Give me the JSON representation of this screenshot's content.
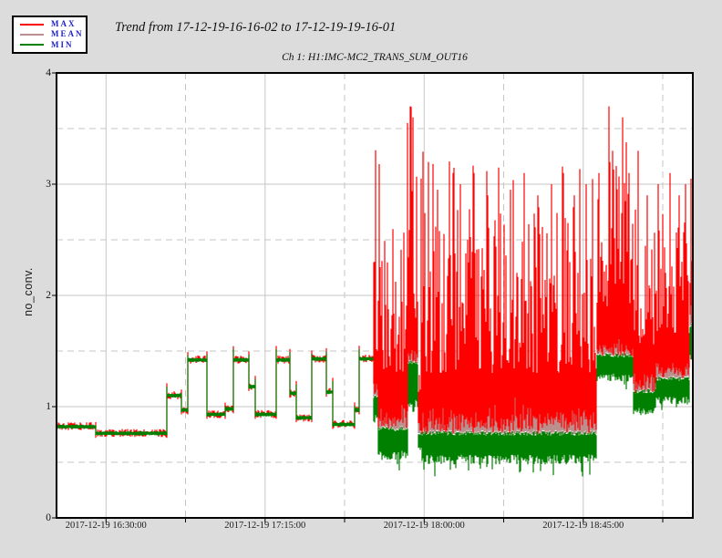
{
  "window": {
    "background": "#dcdcdc",
    "plot_background": "#ffffff",
    "grid_color": "#c6c6c6"
  },
  "chart_data": {
    "type": "line",
    "title": "Trend from 17-12-19-16-16-02 to 17-12-19-19-16-01",
    "subtitle": "Ch 1: H1:IMC-MC2_TRANS_SUM_OUT16",
    "ylabel": "no_conv.",
    "xlabel": "",
    "legend_position": "top-left",
    "grid": true,
    "ylim": [
      0,
      4
    ],
    "y_major_ticks": [
      0,
      1,
      2,
      3,
      4
    ],
    "y_minor_gridlines": [
      0.5,
      1.5,
      2.5,
      3.5
    ],
    "x_minutes_range": [
      0,
      180
    ],
    "x_start_label": "17-12-19-16-16-02",
    "x_end_label": "17-12-19-19-16-01",
    "x_ticks": [
      {
        "t": 14,
        "label": "2017-12-19 16:30:00",
        "major": true
      },
      {
        "t": 36.5,
        "label": "",
        "major": false
      },
      {
        "t": 59,
        "label": "2017-12-19 17:15:00",
        "major": true
      },
      {
        "t": 81.5,
        "label": "",
        "major": false
      },
      {
        "t": 104,
        "label": "2017-12-19 18:00:00",
        "major": true
      },
      {
        "t": 126.5,
        "label": "",
        "major": false
      },
      {
        "t": 149,
        "label": "2017-12-19 18:45:00",
        "major": true
      },
      {
        "t": 171.5,
        "label": "",
        "major": false
      }
    ],
    "series": [
      {
        "name": "MAX",
        "color": "#ff0000"
      },
      {
        "name": "MEAN",
        "color": "#bc8f8f"
      },
      {
        "name": "MIN",
        "color": "#008000"
      }
    ],
    "quiet_steps": [
      {
        "t0": 0,
        "t1": 11,
        "v": 0.82
      },
      {
        "t0": 11,
        "t1": 31.2,
        "v": 0.76
      },
      {
        "t0": 31.2,
        "t1": 35.1,
        "v": 1.1
      },
      {
        "t0": 35.1,
        "t1": 36.9,
        "v": 0.97
      },
      {
        "t0": 36.9,
        "t1": 42.3,
        "v": 1.42
      },
      {
        "t0": 42.3,
        "t1": 47.7,
        "v": 0.93
      },
      {
        "t0": 47.7,
        "t1": 50.0,
        "v": 0.98
      },
      {
        "t0": 50.0,
        "t1": 54.2,
        "v": 1.42
      },
      {
        "t0": 54.2,
        "t1": 56.2,
        "v": 1.18
      },
      {
        "t0": 56.2,
        "t1": 61.9,
        "v": 0.93
      },
      {
        "t0": 61.9,
        "t1": 66.0,
        "v": 1.42
      },
      {
        "t0": 66.0,
        "t1": 67.8,
        "v": 1.12
      },
      {
        "t0": 67.8,
        "t1": 72.0,
        "v": 0.9
      },
      {
        "t0": 72.0,
        "t1": 76.3,
        "v": 1.43
      },
      {
        "t0": 76.3,
        "t1": 77.9,
        "v": 1.13
      },
      {
        "t0": 77.9,
        "t1": 84.3,
        "v": 0.84
      },
      {
        "t0": 84.3,
        "t1": 85.6,
        "v": 0.97
      },
      {
        "t0": 85.6,
        "t1": 89.5,
        "v": 1.43
      }
    ],
    "noise_segments": [
      {
        "t0": 89.5,
        "t1": 91.0,
        "min": [
          0.85,
          1.1
        ],
        "mean": [
          1.05,
          1.3
        ],
        "max": [
          1.5,
          3.4
        ]
      },
      {
        "t0": 91.0,
        "t1": 99.3,
        "min": [
          0.52,
          0.82
        ],
        "mean": [
          0.82,
          1.1
        ],
        "max": [
          1.3,
          3.2
        ]
      },
      {
        "t0": 99.3,
        "t1": 102.2,
        "min": [
          0.95,
          1.42
        ],
        "mean": [
          1.42,
          1.58
        ],
        "max": [
          1.8,
          3.7
        ]
      },
      {
        "t0": 102.2,
        "t1": 103.3,
        "min": [
          0.6,
          0.78
        ],
        "mean": [
          0.78,
          0.9
        ],
        "max": [
          0.95,
          1.8
        ]
      },
      {
        "t0": 103.3,
        "t1": 152.8,
        "min": [
          0.48,
          0.78
        ],
        "mean": [
          0.78,
          1.06
        ],
        "max": [
          1.3,
          3.3
        ]
      },
      {
        "t0": 152.8,
        "t1": 163.0,
        "min": [
          1.22,
          1.48
        ],
        "mean": [
          1.48,
          1.66
        ],
        "max": [
          1.9,
          3.7
        ]
      },
      {
        "t0": 163.0,
        "t1": 169.5,
        "min": [
          0.92,
          1.16
        ],
        "mean": [
          1.16,
          1.36
        ],
        "max": [
          1.55,
          3.3
        ]
      },
      {
        "t0": 169.5,
        "t1": 179.2,
        "min": [
          1.02,
          1.27
        ],
        "mean": [
          1.27,
          1.47
        ],
        "max": [
          1.65,
          3.3
        ]
      },
      {
        "t0": 179.2,
        "t1": 180.0,
        "min": [
          1.35,
          1.75
        ],
        "mean": [
          1.75,
          2.0
        ],
        "max": [
          2.0,
          3.05
        ]
      }
    ],
    "max_spikes": [
      {
        "t": 89.5,
        "v": 3.35
      },
      {
        "t": 99.3,
        "v": 3.55
      },
      {
        "t": 100.0,
        "v": 3.7
      },
      {
        "t": 100.8,
        "v": 3.6
      },
      {
        "t": 103.2,
        "v": 3.05
      },
      {
        "t": 105.2,
        "v": 3.2
      },
      {
        "t": 107.8,
        "v": 2.95
      },
      {
        "t": 112.2,
        "v": 3.1
      },
      {
        "t": 114.2,
        "v": 3.0
      },
      {
        "t": 118.1,
        "v": 3.1
      },
      {
        "t": 122.0,
        "v": 2.9
      },
      {
        "t": 125.1,
        "v": 3.15
      },
      {
        "t": 128.4,
        "v": 2.95
      },
      {
        "t": 132.3,
        "v": 3.1
      },
      {
        "t": 136.2,
        "v": 2.9
      },
      {
        "t": 140.0,
        "v": 3.0
      },
      {
        "t": 143.4,
        "v": 3.1
      },
      {
        "t": 146.5,
        "v": 2.9
      },
      {
        "t": 149.8,
        "v": 3.0
      },
      {
        "t": 153.4,
        "v": 3.1
      },
      {
        "t": 156.3,
        "v": 3.7
      },
      {
        "t": 157.3,
        "v": 3.3
      },
      {
        "t": 160.2,
        "v": 3.6
      },
      {
        "t": 162.0,
        "v": 3.1
      },
      {
        "t": 164.5,
        "v": 3.3
      },
      {
        "t": 167.1,
        "v": 2.9
      },
      {
        "t": 170.2,
        "v": 3.0
      },
      {
        "t": 173.6,
        "v": 3.1
      },
      {
        "t": 176.1,
        "v": 2.9
      },
      {
        "t": 178.0,
        "v": 3.0
      },
      {
        "t": 179.5,
        "v": 3.05
      }
    ]
  }
}
